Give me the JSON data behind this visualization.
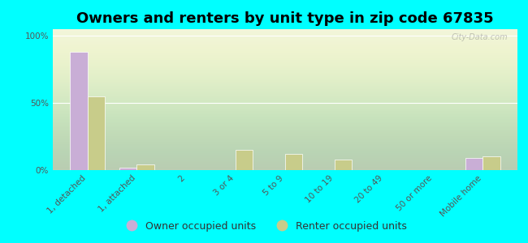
{
  "title": "Owners and renters by unit type in zip code 67835",
  "categories": [
    "1, detached",
    "1, attached",
    "2",
    "3 or 4",
    "5 to 9",
    "10 to 19",
    "20 to 49",
    "50 or more",
    "Mobile home"
  ],
  "owner_values": [
    88,
    2,
    0,
    0,
    0,
    0,
    0,
    0,
    9
  ],
  "renter_values": [
    55,
    4,
    0,
    15,
    12,
    8,
    0,
    0,
    10
  ],
  "owner_color": "#c9aed6",
  "renter_color": "#c8cc8a",
  "background_color": "#00ffff",
  "ylabel_ticks": [
    "0%",
    "50%",
    "100%"
  ],
  "ytick_vals": [
    0,
    50,
    100
  ],
  "ylim": [
    0,
    105
  ],
  "bar_width": 0.35,
  "legend_owner": "Owner occupied units",
  "legend_renter": "Renter occupied units",
  "watermark": "City-Data.com",
  "title_fontsize": 13,
  "tick_fontsize": 7.5,
  "legend_fontsize": 9
}
